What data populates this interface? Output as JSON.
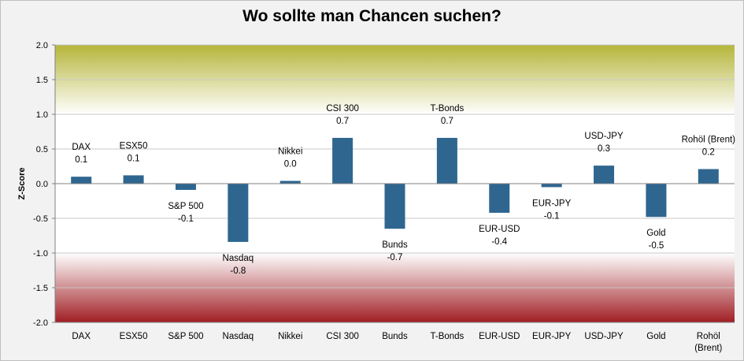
{
  "chart_data": {
    "type": "bar",
    "title": "Wo sollte man Chancen suchen?",
    "xlabel": "",
    "ylabel": "Z-Score",
    "ylim": [
      -2.0,
      2.0
    ],
    "yticks": [
      "2.0",
      "1.5",
      "1.0",
      "0.5",
      "0.0",
      "-0.5",
      "-1.0",
      "-1.5",
      "-2.0"
    ],
    "ytick_values": [
      2.0,
      1.5,
      1.0,
      0.5,
      0.0,
      -0.5,
      -1.0,
      -1.5,
      -2.0
    ],
    "grid": true,
    "legend": "none",
    "bar_color": "#2e6690",
    "band_top_color": "#b5b53a",
    "band_bottom_color": "#a01e24",
    "categories": [
      "DAX",
      "ESX50",
      "S&P 500",
      "Nasdaq",
      "Nikkei",
      "CSI 300",
      "Bunds",
      "T-Bonds",
      "EUR-USD",
      "EUR-JPY",
      "USD-JPY",
      "Gold",
      "Rohöl (Brent)"
    ],
    "category_lines": [
      [
        "DAX"
      ],
      [
        "ESX50"
      ],
      [
        "S&P 500"
      ],
      [
        "Nasdaq"
      ],
      [
        "Nikkei"
      ],
      [
        "CSI 300"
      ],
      [
        "Bunds"
      ],
      [
        "T-Bonds"
      ],
      [
        "EUR-USD"
      ],
      [
        "EUR-JPY"
      ],
      [
        "USD-JPY"
      ],
      [
        "Gold"
      ],
      [
        "Rohöl",
        "(Brent)"
      ]
    ],
    "values": [
      0.1,
      0.12,
      -0.09,
      -0.84,
      0.04,
      0.66,
      -0.65,
      0.66,
      -0.42,
      -0.05,
      0.26,
      -0.48,
      0.21
    ],
    "data_labels": [
      {
        "name": "DAX",
        "value": "0.1"
      },
      {
        "name": "ESX50",
        "value": "0.1"
      },
      {
        "name": "S&P 500",
        "value": "-0.1"
      },
      {
        "name": "Nasdaq",
        "value": "-0.8"
      },
      {
        "name": "Nikkei",
        "value": "0.0"
      },
      {
        "name": "CSI 300",
        "value": "0.7"
      },
      {
        "name": "Bunds",
        "value": "-0.7"
      },
      {
        "name": "T-Bonds",
        "value": "0.7"
      },
      {
        "name": "EUR-USD",
        "value": "-0.4"
      },
      {
        "name": "EUR-JPY",
        "value": "-0.1"
      },
      {
        "name": "USD-JPY",
        "value": "0.3"
      },
      {
        "name": "Gold",
        "value": "-0.5"
      },
      {
        "name": "Rohöl (Brent)",
        "value": "0.2"
      }
    ]
  }
}
